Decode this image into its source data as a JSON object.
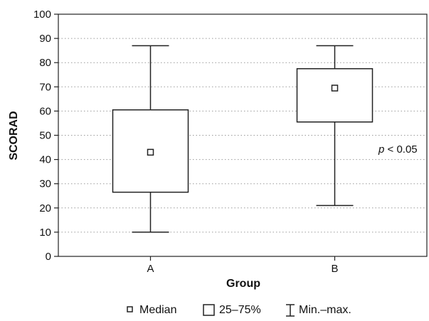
{
  "chart_data": {
    "type": "box",
    "ylabel": "SCORAD",
    "xlabel": "Group",
    "ylim": [
      0,
      100
    ],
    "yticks": [
      0,
      10,
      20,
      30,
      40,
      50,
      60,
      70,
      80,
      90,
      100
    ],
    "grid": "horizontal dotted",
    "categories": [
      "A",
      "B"
    ],
    "boxes": [
      {
        "category": "A",
        "min": 10,
        "q1": 26.5,
        "median": 43,
        "q3": 60.5,
        "max": 87
      },
      {
        "category": "B",
        "min": 21,
        "q1": 55.5,
        "median": 69.5,
        "q3": 77.5,
        "max": 87
      }
    ],
    "annotation": {
      "p_symbol": "p",
      "p_rest": " < 0.05"
    },
    "legend": {
      "placement": "bottom",
      "items": [
        {
          "symbol": "median",
          "label": "Median"
        },
        {
          "symbol": "box",
          "label": "25–75%"
        },
        {
          "symbol": "whisker",
          "label": "Min.–max."
        }
      ]
    },
    "colors": {
      "line": "#222222",
      "box_fill": "#ffffff",
      "grid": "#9a9a9a"
    }
  }
}
